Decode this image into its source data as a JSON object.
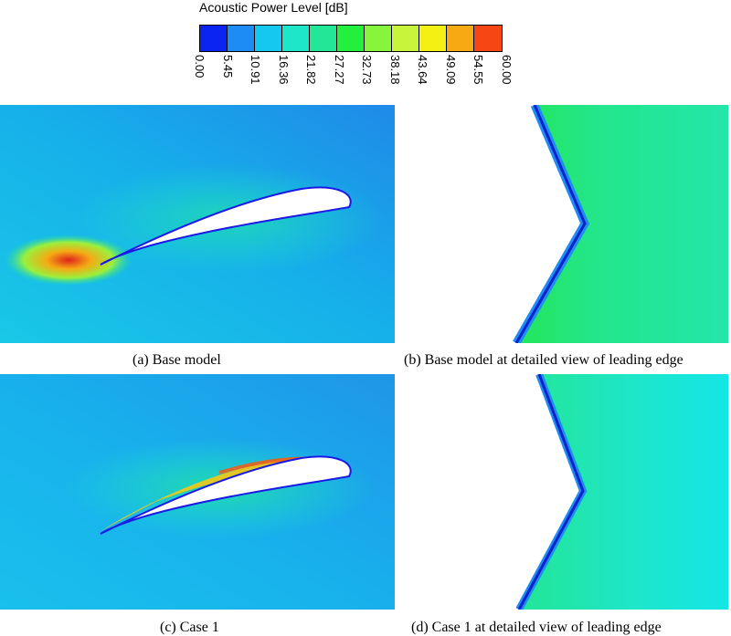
{
  "legend": {
    "title": "Acoustic Power Level [dB]",
    "colors": [
      "#0a23f0",
      "#1e8cf5",
      "#14c8f0",
      "#1ee6c8",
      "#23e696",
      "#23f03c",
      "#87f53c",
      "#c8f53c",
      "#f5f014",
      "#f5aa14",
      "#f54614"
    ],
    "ticks": [
      "0.00",
      "5.45",
      "10.91",
      "16.36",
      "21.82",
      "27.27",
      "32.73",
      "38.18",
      "43.64",
      "49.09",
      "54.55",
      "60.00"
    ]
  },
  "panels": {
    "a": {
      "caption": "(a) Base model"
    },
    "b": {
      "caption": "(b) Base model at detailed view of leading edge"
    },
    "c": {
      "caption": "(c) Case 1"
    },
    "d": {
      "caption": "(d) Case 1 at detailed view of leading edge"
    }
  }
}
